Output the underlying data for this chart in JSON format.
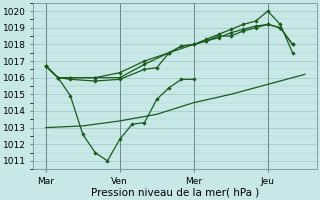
{
  "background_color": "#c8e8e8",
  "grid_major_color": "#a0c4c4",
  "vline_color": "#6a8a8a",
  "line_color": "#1a5c1a",
  "xlabel": "Pression niveau de la mer( hPa )",
  "xlabel_fontsize": 7.5,
  "tick_fontsize": 6.5,
  "ylim": [
    1010.5,
    1020.5
  ],
  "xlim": [
    -0.5,
    11.0
  ],
  "yticks": [
    1011,
    1012,
    1013,
    1014,
    1015,
    1016,
    1017,
    1018,
    1019,
    1020
  ],
  "xtick_labels": [
    "Mar",
    "Ven",
    "Mer",
    "Jeu"
  ],
  "xtick_positions": [
    0,
    3,
    6,
    9
  ],
  "vline_positions": [
    0,
    3,
    6,
    9
  ],
  "series": [
    {
      "x": [
        0,
        0.5,
        1.0,
        1.5,
        2.0,
        2.5,
        3.0,
        3.5,
        4.0,
        4.5,
        5.0,
        5.5,
        6.0
      ],
      "y": [
        1016.7,
        1016.0,
        1014.9,
        1012.6,
        1011.5,
        1011.0,
        1012.3,
        1013.2,
        1013.3,
        1014.7,
        1015.4,
        1015.9,
        1015.9
      ],
      "marker": true
    },
    {
      "x": [
        0,
        0.5,
        1.0,
        2.0,
        3.0,
        4.0,
        4.5,
        5.0,
        5.5,
        6.0,
        6.5,
        7.0,
        7.5,
        8.0,
        8.5,
        9.0,
        9.5,
        10.0
      ],
      "y": [
        1016.7,
        1016.0,
        1015.9,
        1015.8,
        1015.9,
        1016.5,
        1016.6,
        1017.5,
        1017.9,
        1018.0,
        1018.2,
        1018.5,
        1018.5,
        1018.8,
        1019.0,
        1019.2,
        1019.0,
        1018.0
      ],
      "marker": true
    },
    {
      "x": [
        0,
        0.5,
        1.0,
        2.0,
        3.0,
        4.0,
        5.0,
        5.5,
        6.0,
        6.5,
        7.0,
        7.5,
        8.0,
        8.5,
        9.0,
        9.5,
        10.0
      ],
      "y": [
        1016.7,
        1016.0,
        1016.0,
        1016.0,
        1016.0,
        1016.8,
        1017.5,
        1017.9,
        1018.0,
        1018.2,
        1018.4,
        1018.7,
        1018.9,
        1019.1,
        1019.2,
        1019.0,
        1018.0
      ],
      "marker": true
    },
    {
      "x": [
        0,
        0.5,
        1.0,
        2.0,
        3.0,
        4.0,
        5.0,
        6.0,
        6.5,
        7.0,
        7.5,
        8.0,
        8.5,
        9.0,
        9.5,
        10.0
      ],
      "y": [
        1016.7,
        1016.0,
        1016.0,
        1016.0,
        1016.3,
        1017.0,
        1017.5,
        1018.0,
        1018.3,
        1018.6,
        1018.9,
        1019.2,
        1019.4,
        1020.0,
        1019.2,
        1017.5
      ],
      "marker": true
    },
    {
      "x": [
        0,
        1.5,
        3.0,
        4.5,
        6.0,
        7.5,
        9.0,
        10.5
      ],
      "y": [
        1013.0,
        1013.1,
        1013.4,
        1013.8,
        1014.5,
        1015.0,
        1015.6,
        1016.2
      ],
      "marker": false
    }
  ]
}
